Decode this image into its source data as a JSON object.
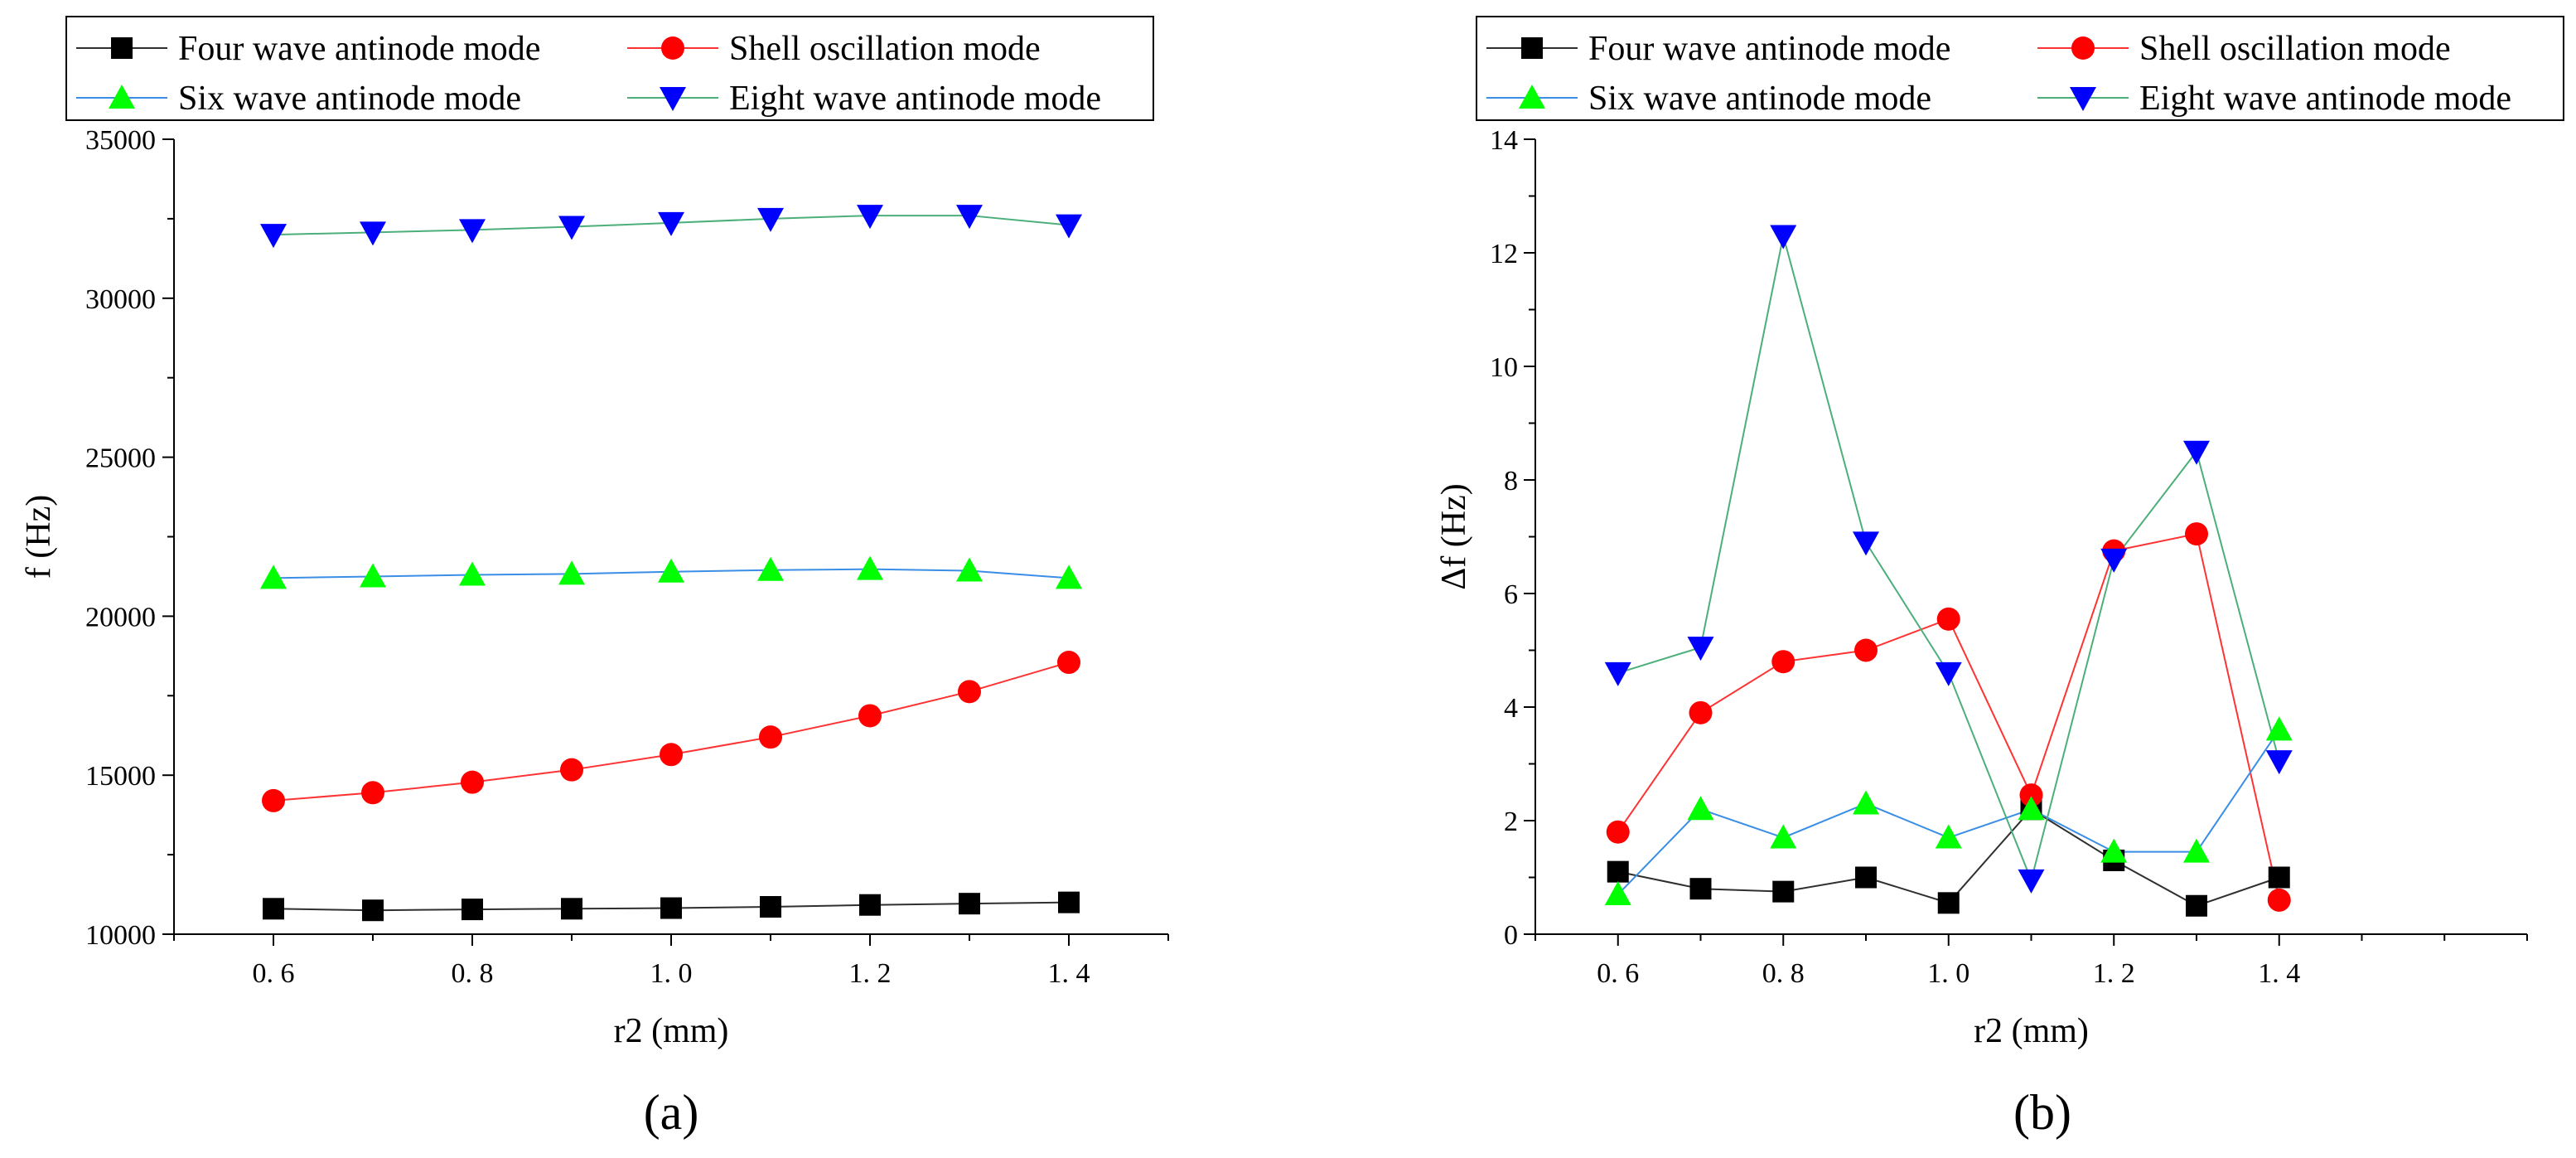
{
  "figure": {
    "captions": [
      "(a)",
      "(b)"
    ]
  },
  "colors": {
    "four_marker": "#000000",
    "four_line": "#2f2f2f",
    "shell_marker": "#ff0000",
    "shell_line": "#ff3333",
    "six_marker": "#00ff00",
    "six_line": "#3a8ee6",
    "eight_marker": "#0000ff",
    "eight_line": "#4caf7a"
  },
  "chart_data": [
    {
      "id": "a",
      "type": "line",
      "title": "",
      "caption": "(a)",
      "xlabel": "r2 (mm)",
      "ylabel": "f (Hz)",
      "xlim": [
        0.5,
        1.5
      ],
      "ylim": [
        10000,
        35000
      ],
      "xticks": [
        0.6,
        0.8,
        1.0,
        1.2,
        1.4
      ],
      "xtick_labels": [
        "0. 6",
        "0. 8",
        "1. 0",
        "1. 2",
        "1. 4"
      ],
      "yticks": [
        10000,
        15000,
        20000,
        25000,
        30000,
        35000
      ],
      "ytick_labels": [
        "10000",
        "15000",
        "20000",
        "25000",
        "30000",
        "35000"
      ],
      "x": [
        0.6,
        0.7,
        0.8,
        0.9,
        1.0,
        1.1,
        1.2,
        1.3,
        1.4
      ],
      "legend": {
        "placement": "top",
        "columns": 2
      },
      "series": [
        {
          "key": "four",
          "name": "Four wave antinode mode",
          "marker": "square",
          "values": [
            10800,
            10750,
            10780,
            10800,
            10820,
            10860,
            10920,
            10960,
            11000
          ]
        },
        {
          "key": "shell",
          "name": "Shell oscillation mode",
          "marker": "circle",
          "values": [
            14200,
            14450,
            14780,
            15170,
            15650,
            16200,
            16870,
            17630,
            18550
          ]
        },
        {
          "key": "six",
          "name": "Six wave antinode mode",
          "marker": "triangle-up",
          "values": [
            21200,
            21250,
            21300,
            21330,
            21400,
            21450,
            21480,
            21430,
            21200
          ]
        },
        {
          "key": "eight",
          "name": "Eight wave antinode mode",
          "marker": "triangle-down",
          "values": [
            32000,
            32070,
            32150,
            32250,
            32370,
            32500,
            32600,
            32600,
            32300
          ]
        }
      ]
    },
    {
      "id": "b",
      "type": "line",
      "title": "",
      "caption": "(b)",
      "xlabel": "r2 (mm)",
      "ylabel": "Δf (Hz)",
      "xlim": [
        0.5,
        1.7
      ],
      "ylim": [
        0,
        14
      ],
      "xticks": [
        0.6,
        0.8,
        1.0,
        1.2,
        1.4
      ],
      "xtick_labels": [
        "0. 6",
        "0. 8",
        "1. 0",
        "1. 2",
        "1. 4"
      ],
      "yticks": [
        0,
        2,
        4,
        6,
        8,
        10,
        12,
        14
      ],
      "ytick_labels": [
        "0",
        "2",
        "4",
        "6",
        "8",
        "10",
        "12",
        "14"
      ],
      "x": [
        0.6,
        0.7,
        0.8,
        0.9,
        1.0,
        1.1,
        1.2,
        1.3,
        1.4
      ],
      "legend": {
        "placement": "top",
        "columns": 2
      },
      "series": [
        {
          "key": "four",
          "name": "Four wave antinode mode",
          "marker": "square",
          "values": [
            1.1,
            0.8,
            0.75,
            1.0,
            0.55,
            2.2,
            1.3,
            0.5,
            1.0
          ]
        },
        {
          "key": "shell",
          "name": "Shell oscillation mode",
          "marker": "circle",
          "values": [
            1.8,
            3.9,
            4.8,
            5.0,
            5.55,
            2.45,
            6.75,
            7.05,
            0.6
          ]
        },
        {
          "key": "six",
          "name": "Six wave antinode mode",
          "marker": "triangle-up",
          "values": [
            0.7,
            2.2,
            1.7,
            2.3,
            1.7,
            2.2,
            1.45,
            1.45,
            3.6
          ]
        },
        {
          "key": "eight",
          "name": "Eight wave antinode mode",
          "marker": "triangle-down",
          "values": [
            4.6,
            5.05,
            12.3,
            6.9,
            4.6,
            0.95,
            6.6,
            8.5,
            3.05
          ]
        }
      ]
    }
  ]
}
